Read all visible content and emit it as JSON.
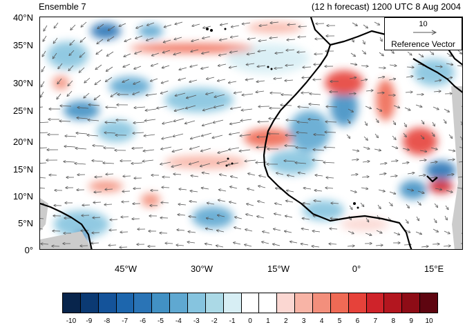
{
  "title_left": "Ensemble 7",
  "title_right": "(12 h forecast) 1200 UTC 8 Aug 2004",
  "reference_vector": {
    "magnitude": "10",
    "label": "Reference Vector"
  },
  "y_ticks": [
    "40°N",
    "35°N",
    "30°N",
    "25°N",
    "20°N",
    "15°N",
    "10°N",
    "5°N",
    "0°"
  ],
  "x_ticks": [
    "45°W",
    "30°W",
    "15°W",
    "0°",
    "15°E"
  ],
  "colorbar": {
    "labels": [
      "-10",
      "-9",
      "-8",
      "-7",
      "-6",
      "-5",
      "-4",
      "-3",
      "-2",
      "-1",
      "0",
      "1",
      "2",
      "3",
      "4",
      "5",
      "6",
      "7",
      "8",
      "9",
      "10"
    ],
    "colors": [
      "#08254c",
      "#0b3a73",
      "#14539a",
      "#1d66ad",
      "#2a74b6",
      "#4291c4",
      "#5fa8d1",
      "#86c4df",
      "#abd9e6",
      "#d7eef4",
      "#ffffff",
      "#ffffff",
      "#fbd7d2",
      "#f8b4a6",
      "#f38f7c",
      "#ef6a55",
      "#e6423a",
      "#cf232a",
      "#b3161f",
      "#8e0c16",
      "#5e0510"
    ]
  },
  "chart_data": {
    "type": "map",
    "map_extent": {
      "lon": [
        -62,
        20
      ],
      "lat": [
        0,
        40
      ]
    },
    "color_scale_range": [
      -10,
      10
    ]
  }
}
